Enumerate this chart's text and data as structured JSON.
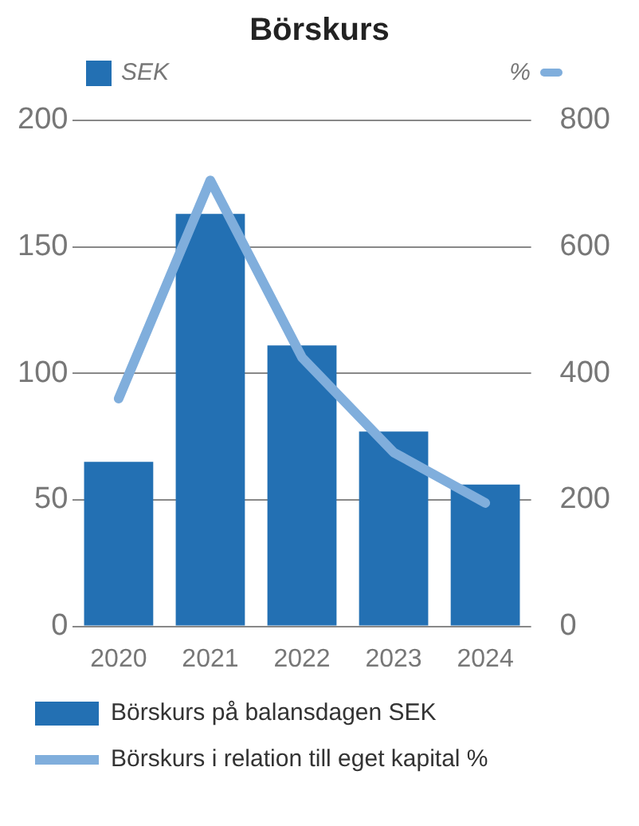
{
  "chart_data": {
    "type": "bar",
    "title": "Börskurs",
    "ylabel": "SEK",
    "y2label": "%",
    "categories": [
      "2020",
      "2021",
      "2022",
      "2023",
      "2024"
    ],
    "series": [
      {
        "name": "Börskurs på balansdagen SEK",
        "color": "#2370b3",
        "values": [
          65,
          163,
          111,
          77,
          56
        ]
      },
      {
        "name": "Börskurs i relation till eget kapital %",
        "type": "line",
        "axis": "y2",
        "color": "#80aedc",
        "values": [
          360,
          705,
          425,
          275,
          195
        ]
      }
    ],
    "ylim": [
      0,
      200
    ],
    "yticks": [
      0,
      50,
      100,
      150,
      200
    ],
    "y2lim": [
      0,
      800
    ],
    "y2ticks": [
      0,
      200,
      400,
      600,
      800
    ],
    "grid": "y",
    "legend": "bottom",
    "marker": "none",
    "line_style": "solid"
  }
}
